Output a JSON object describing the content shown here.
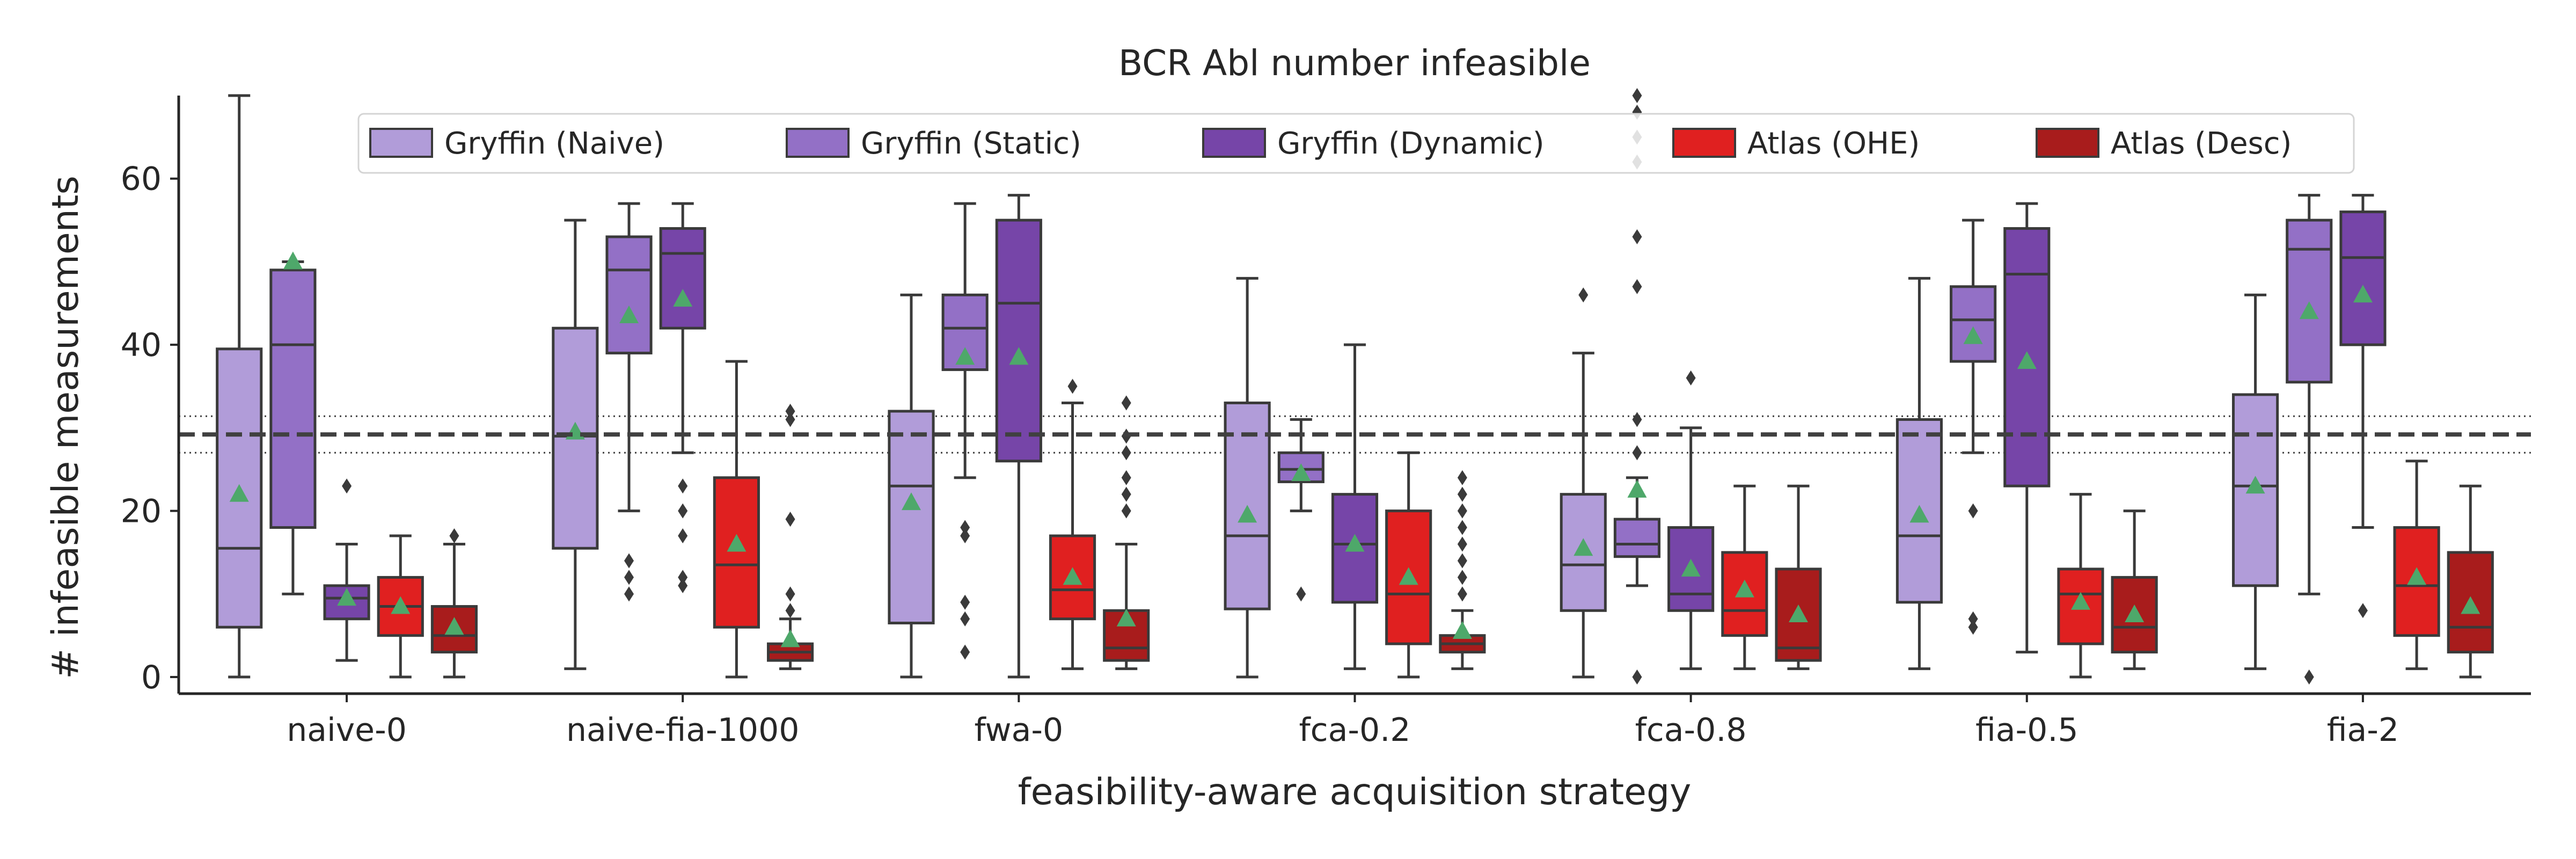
{
  "chart_data": {
    "type": "box",
    "title": "BCR Abl number infeasible",
    "xlabel": "feasibility-aware acquisition strategy",
    "ylabel": "# infeasible measurements",
    "ylim": [
      -2,
      70
    ],
    "yticks": [
      0,
      20,
      40,
      60
    ],
    "grid": false,
    "legend_position": "top",
    "reference_line": {
      "y": 29.2,
      "band": [
        27.0,
        31.4
      ]
    },
    "categories": [
      "naive-0",
      "naive-fia-1000",
      "fwa-0",
      "fca-0.2",
      "fca-0.8",
      "fia-0.5",
      "fia-2"
    ],
    "series": [
      {
        "name": "Gryffin (Naive)",
        "color": "#b19cd9",
        "boxes": [
          {
            "low": 0,
            "q1": 6,
            "median": 15.5,
            "q3": 39.5,
            "high": 70,
            "mean": 22,
            "outliers": []
          },
          {
            "low": 1,
            "q1": 15.5,
            "median": 29,
            "q3": 42,
            "high": 55,
            "mean": 29.5,
            "outliers": []
          },
          {
            "low": 0,
            "q1": 6.5,
            "median": 23,
            "q3": 32,
            "high": 46,
            "mean": 21,
            "outliers": []
          },
          {
            "low": 0,
            "q1": 8.2,
            "median": 17,
            "q3": 33,
            "high": 48,
            "mean": 19.5,
            "outliers": []
          },
          {
            "low": 0,
            "q1": 8,
            "median": 13.5,
            "q3": 22,
            "high": 39,
            "mean": 15.5,
            "outliers": [
              46
            ]
          },
          {
            "low": 1,
            "q1": 9,
            "median": 17,
            "q3": 31,
            "high": 48,
            "mean": 19.5,
            "outliers": []
          },
          {
            "low": 1,
            "q1": 11,
            "median": 23,
            "q3": 34,
            "high": 46,
            "mean": 23,
            "outliers": []
          }
        ]
      },
      {
        "name": "Gryffin (Static)",
        "color": "#9370c6",
        "boxes": [
          {
            "low": 10,
            "q1": 18,
            "median": 40,
            "q3": 49,
            "high": 50,
            "mean": 50,
            "outliers": []
          },
          {
            "low": 20,
            "q1": 39,
            "median": 49,
            "q3": 53,
            "high": 57,
            "mean": 43.5,
            "outliers": [
              10,
              12,
              14
            ]
          },
          {
            "low": 24,
            "q1": 37,
            "median": 42,
            "q3": 46,
            "high": 57,
            "mean": 38.5,
            "outliers": [
              17,
              18,
              9,
              7,
              3
            ]
          },
          {
            "low": 20,
            "q1": 23.5,
            "median": 25,
            "q3": 27,
            "high": 31,
            "mean": 24.5,
            "outliers": [
              10
            ]
          },
          {
            "low": 11,
            "q1": 14.5,
            "median": 16,
            "q3": 19,
            "high": 24,
            "mean": 22.5,
            "outliers": [
              0,
              27,
              31,
              47,
              53,
              62,
              65,
              68,
              70
            ]
          },
          {
            "low": 27,
            "q1": 38,
            "median": 43,
            "q3": 47,
            "high": 55,
            "mean": 41,
            "outliers": [
              20,
              7,
              6
            ]
          },
          {
            "low": 10,
            "q1": 35.5,
            "median": 51.5,
            "q3": 55,
            "high": 58,
            "mean": 44,
            "outliers": [
              0
            ]
          }
        ]
      },
      {
        "name": "Gryffin (Dynamic)",
        "color": "#7645a8",
        "boxes": [
          {
            "low": 2,
            "q1": 7,
            "median": 9.5,
            "q3": 11,
            "high": 16,
            "mean": 9.5,
            "outliers": [
              23
            ]
          },
          {
            "low": 27,
            "q1": 42,
            "median": 51,
            "q3": 54,
            "high": 57,
            "mean": 45.5,
            "outliers": [
              23,
              20,
              17,
              12,
              11
            ]
          },
          {
            "low": 0,
            "q1": 26,
            "median": 45,
            "q3": 55,
            "high": 58,
            "mean": 38.5,
            "outliers": []
          },
          {
            "low": 1,
            "q1": 9,
            "median": 16,
            "q3": 22,
            "high": 40,
            "mean": 16,
            "outliers": []
          },
          {
            "low": 1,
            "q1": 8,
            "median": 10,
            "q3": 18,
            "high": 30,
            "mean": 13,
            "outliers": [
              36
            ]
          },
          {
            "low": 3,
            "q1": 23,
            "median": 48.5,
            "q3": 54,
            "high": 57,
            "mean": 38,
            "outliers": []
          },
          {
            "low": 18,
            "q1": 40,
            "median": 50.5,
            "q3": 56,
            "high": 58,
            "mean": 46,
            "outliers": [
              8
            ]
          }
        ]
      },
      {
        "name": "Atlas (OHE)",
        "color": "#e02020",
        "boxes": [
          {
            "low": 0,
            "q1": 5,
            "median": 8.5,
            "q3": 12,
            "high": 17,
            "mean": 8.5,
            "outliers": []
          },
          {
            "low": 0,
            "q1": 6,
            "median": 13.5,
            "q3": 24,
            "high": 38,
            "mean": 16,
            "outliers": []
          },
          {
            "low": 1,
            "q1": 7,
            "median": 10.5,
            "q3": 17,
            "high": 33,
            "mean": 12,
            "outliers": [
              35
            ]
          },
          {
            "low": 0,
            "q1": 4,
            "median": 10,
            "q3": 20,
            "high": 27,
            "mean": 12,
            "outliers": []
          },
          {
            "low": 1,
            "q1": 5,
            "median": 8,
            "q3": 15,
            "high": 23,
            "mean": 10.5,
            "outliers": []
          },
          {
            "low": 0,
            "q1": 4,
            "median": 10,
            "q3": 13,
            "high": 22,
            "mean": 9,
            "outliers": []
          },
          {
            "low": 1,
            "q1": 5,
            "median": 11,
            "q3": 18,
            "high": 26,
            "mean": 12,
            "outliers": []
          }
        ]
      },
      {
        "name": "Atlas (Desc)",
        "color": "#a81c1c",
        "boxes": [
          {
            "low": 0,
            "q1": 3,
            "median": 5,
            "q3": 8.5,
            "high": 16,
            "mean": 6,
            "outliers": [
              17
            ]
          },
          {
            "low": 1,
            "q1": 2,
            "median": 3,
            "q3": 4,
            "high": 7,
            "mean": 4.5,
            "outliers": [
              8,
              10,
              19,
              31,
              32
            ]
          },
          {
            "low": 1,
            "q1": 2,
            "median": 3.5,
            "q3": 8,
            "high": 16,
            "mean": 7,
            "outliers": [
              20,
              22,
              24,
              27,
              29,
              33
            ]
          },
          {
            "low": 1,
            "q1": 3,
            "median": 4,
            "q3": 5,
            "high": 8,
            "mean": 5.5,
            "outliers": [
              10,
              12,
              14,
              16,
              18,
              20,
              22,
              24
            ]
          },
          {
            "low": 1,
            "q1": 2,
            "median": 3.5,
            "q3": 13,
            "high": 23,
            "mean": 7.5,
            "outliers": []
          },
          {
            "low": 1,
            "q1": 3,
            "median": 6,
            "q3": 12,
            "high": 20,
            "mean": 7.5,
            "outliers": []
          },
          {
            "low": 0,
            "q1": 3,
            "median": 6,
            "q3": 15,
            "high": 23,
            "mean": 8.5,
            "outliers": []
          }
        ]
      }
    ]
  },
  "style": {
    "line_color": "#3a3a3a",
    "mean_marker_color": "#4ea86a",
    "axis_color": "#262626",
    "reference_line_color": "#404040"
  }
}
